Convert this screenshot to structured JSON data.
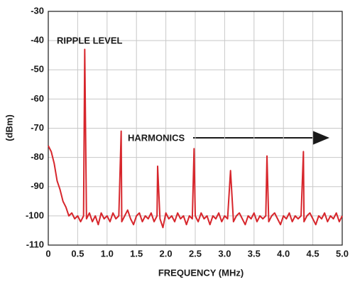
{
  "chart_data": {
    "type": "line",
    "xlabel": "FREQUENCY (MHz)",
    "ylabel": "(dBm)",
    "annotations": [
      "RIPPLE LEVEL",
      "HARMONICS"
    ],
    "grid": true,
    "xlim": [
      0,
      5
    ],
    "ylim": [
      -110,
      -30
    ],
    "xticks": [
      0,
      0.5,
      {
        "value": 1,
        "label": "1.0"
      },
      1.5,
      {
        "value": 2,
        "label": "2.0"
      },
      2.5,
      {
        "value": 3,
        "label": "3.0"
      },
      3.5,
      {
        "value": 4,
        "label": "4.0"
      },
      4.5,
      {
        "value": 5,
        "label": "5.0"
      }
    ],
    "yticks": [
      -30,
      -40,
      -50,
      -60,
      -70,
      -80,
      -90,
      -100,
      -110
    ],
    "x": [
      0,
      0.05,
      0.1,
      0.15,
      0.2,
      0.25,
      0.3,
      0.35,
      0.4,
      0.45,
      0.5,
      0.55,
      0.6,
      0.62,
      0.65,
      0.7,
      0.75,
      0.8,
      0.85,
      0.9,
      0.95,
      1.0,
      1.05,
      1.1,
      1.15,
      1.2,
      1.24,
      1.25,
      1.3,
      1.35,
      1.4,
      1.45,
      1.5,
      1.55,
      1.6,
      1.65,
      1.7,
      1.75,
      1.8,
      1.85,
      1.86,
      1.9,
      1.95,
      2.0,
      2.05,
      2.1,
      2.15,
      2.2,
      2.25,
      2.3,
      2.35,
      2.4,
      2.45,
      2.48,
      2.5,
      2.55,
      2.6,
      2.65,
      2.7,
      2.75,
      2.8,
      2.85,
      2.9,
      2.95,
      3.0,
      3.05,
      3.1,
      3.15,
      3.2,
      3.25,
      3.3,
      3.35,
      3.4,
      3.45,
      3.5,
      3.55,
      3.6,
      3.65,
      3.7,
      3.72,
      3.75,
      3.8,
      3.85,
      3.9,
      3.95,
      4.0,
      4.05,
      4.1,
      4.15,
      4.2,
      4.25,
      4.3,
      4.34,
      4.35,
      4.4,
      4.45,
      4.5,
      4.55,
      4.6,
      4.65,
      4.7,
      4.75,
      4.8,
      4.85,
      4.9,
      4.95,
      5.0
    ],
    "series": [
      {
        "color": "#d7262c",
        "values": [
          -76,
          -78,
          -82,
          -88,
          -91,
          -95,
          -97,
          -100,
          -99,
          -101,
          -100,
          -102,
          -100,
          -43,
          -101,
          -99,
          -102,
          -100,
          -103,
          -99,
          -101,
          -100,
          -102,
          -99,
          -101,
          -100,
          -71,
          -102,
          -100,
          -98,
          -101,
          -103,
          -100,
          -99,
          -102,
          -100,
          -101,
          -99,
          -102,
          -100,
          -83,
          -101,
          -104,
          -99,
          -101,
          -100,
          -102,
          -99,
          -101,
          -100,
          -103,
          -100,
          -101,
          -77,
          -100,
          -102,
          -99,
          -101,
          -100,
          -103,
          -100,
          -101,
          -99,
          -102,
          -100,
          -101,
          -84.5,
          -102,
          -100,
          -99,
          -101,
          -103,
          -100,
          -101,
          -99,
          -102,
          -100,
          -101,
          -100,
          -79.5,
          -102,
          -100,
          -99,
          -101,
          -103,
          -100,
          -101,
          -99,
          -102,
          -100,
          -101,
          -100,
          -78,
          -102,
          -100,
          -99,
          -101,
          -103,
          -100,
          -101,
          -99,
          -102,
          -100,
          -101,
          -99,
          -102,
          -100
        ]
      }
    ]
  }
}
